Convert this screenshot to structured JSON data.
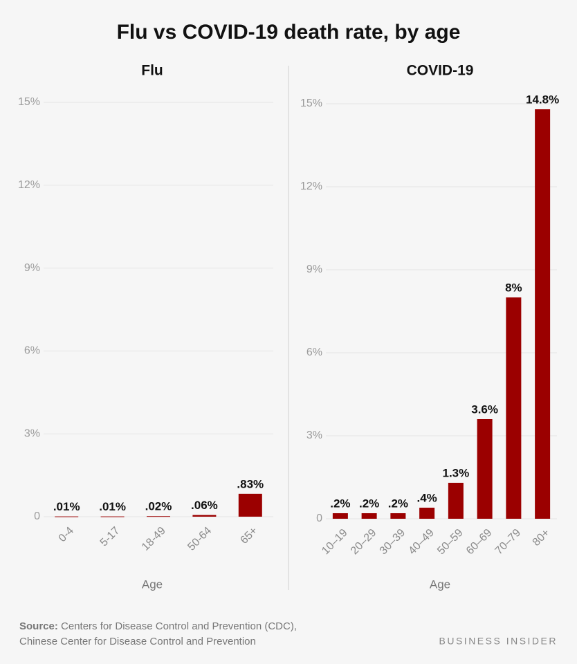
{
  "title": "Flu vs COVID-19 death rate, by age",
  "chart_data": [
    {
      "type": "bar",
      "title": "Flu",
      "xlabel": "Age",
      "categories": [
        "0-4",
        "5-17",
        "18-49",
        "50-64",
        "65+"
      ],
      "values": [
        0.01,
        0.01,
        0.02,
        0.06,
        0.83
      ],
      "value_labels": [
        ".01%",
        ".01%",
        ".02%",
        ".06%",
        ".83%"
      ],
      "color": "#9b0000",
      "grid": true,
      "ylim": [
        0,
        15
      ],
      "yticks": [
        0,
        {
          "value": 3,
          "label": "3%"
        },
        {
          "value": 6,
          "label": "6%"
        },
        {
          "value": 9,
          "label": "9%"
        },
        {
          "value": 12,
          "label": "12%"
        },
        {
          "value": 15,
          "label": "15%"
        }
      ]
    },
    {
      "type": "bar",
      "title": "COVID-19",
      "xlabel": "Age",
      "categories": [
        "10–19",
        "20–29",
        "30–39",
        "40–49",
        "50–59",
        "60–69",
        "70–79",
        "80+"
      ],
      "values": [
        0.2,
        0.2,
        0.2,
        0.4,
        1.3,
        3.6,
        8,
        14.8
      ],
      "value_labels": [
        ".2%",
        ".2%",
        ".2%",
        ".4%",
        "1.3%",
        "3.6%",
        "8%",
        "14.8%"
      ],
      "color": "#9b0000",
      "grid": true,
      "ylim": [
        0,
        15
      ],
      "yticks": [
        0,
        {
          "value": 3,
          "label": "3%"
        },
        {
          "value": 6,
          "label": "6%"
        },
        {
          "value": 9,
          "label": "9%"
        },
        {
          "value": 12,
          "label": "12%"
        },
        {
          "value": 15,
          "label": "15%"
        }
      ]
    }
  ],
  "source": {
    "label": "Source:",
    "lines": [
      "Centers for Disease Control and Prevention (CDC),",
      "Chinese Center for Disease Control and Prevention"
    ]
  },
  "brand": "BUSINESS INSIDER"
}
